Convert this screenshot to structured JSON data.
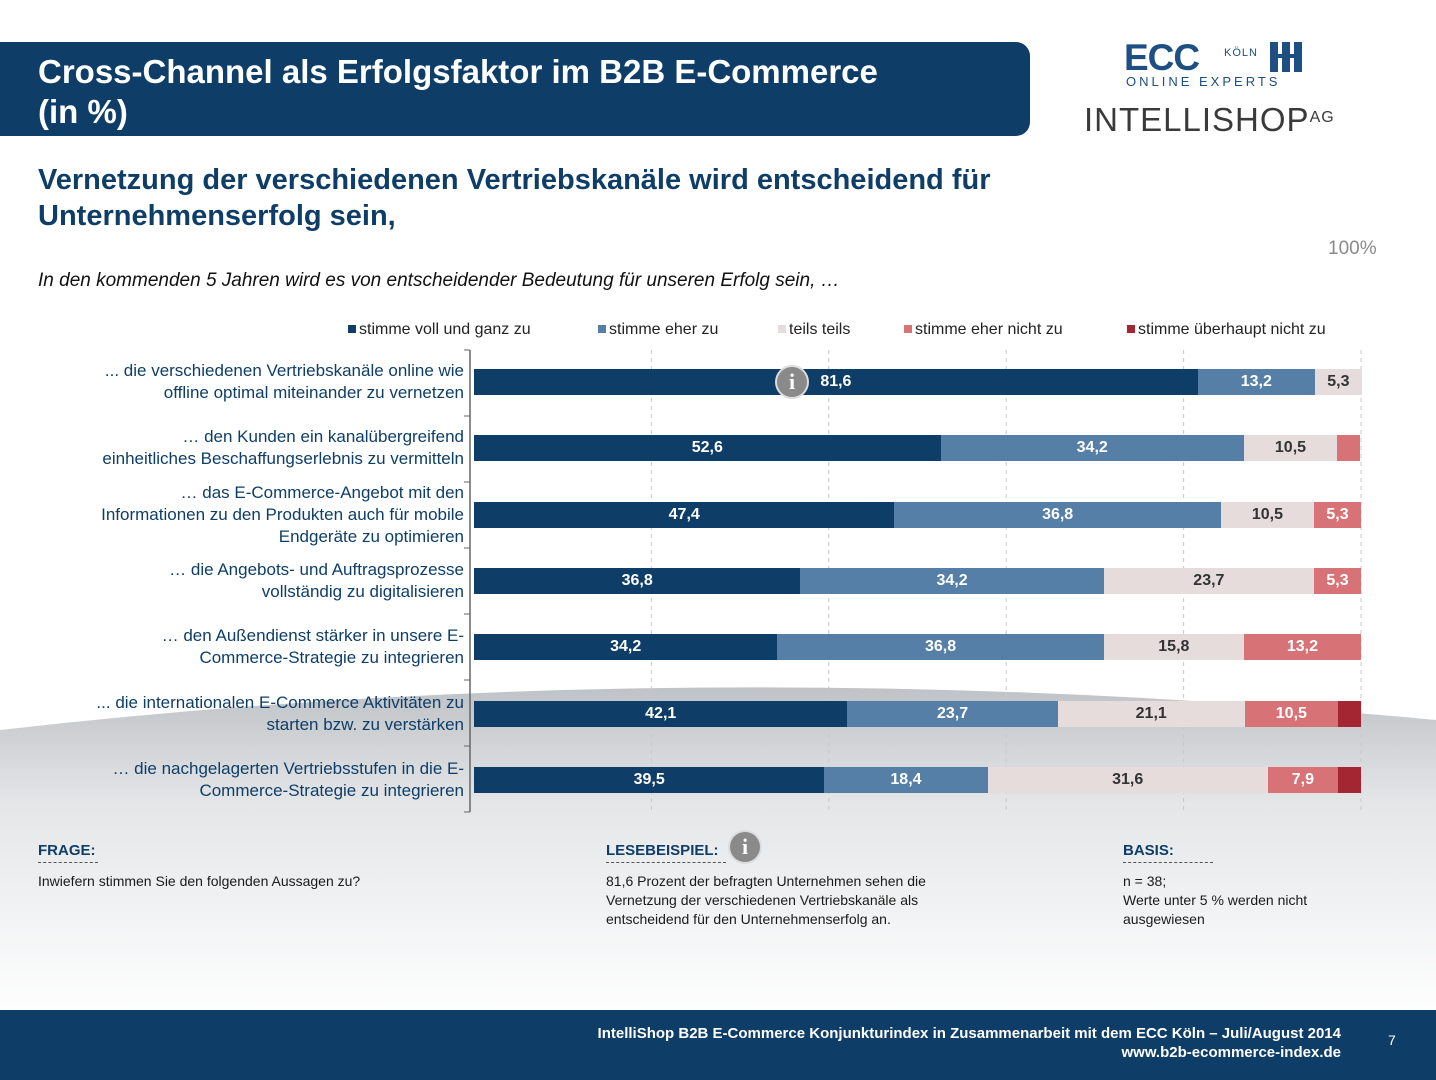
{
  "header": {
    "title_line1": "Cross-Channel als Erfolgsfaktor im B2B E-Commerce",
    "title_line2": "(in %)"
  },
  "logos": {
    "ecc_big": "ECC",
    "ecc_koln": "KÖLN",
    "ecc_sub": "ONLINE EXPERTS",
    "intelli_main": "INTELLISHOP",
    "intelli_ag": "AG"
  },
  "subtitle_line1": "Vernetzung der verschiedenen Vertriebskanäle wird entscheidend für",
  "subtitle_line2": "Unternehmenserfolg sein,",
  "hundred_label": "100%",
  "question": "In den kommenden 5 Jahren wird es von entscheidender Bedeutung für unseren Erfolg sein, …",
  "chart_data": {
    "type": "bar",
    "orientation": "horizontal",
    "stacked": true,
    "xlim": [
      0,
      100
    ],
    "grid": true,
    "legend_position": "top",
    "categories": [
      {
        "line1": "... die verschiedenen Vertriebskanäle online wie",
        "line2": "offline optimal miteinander zu vernetzen",
        "line3": ""
      },
      {
        "line1": "… den Kunden ein kanalübergreifend",
        "line2": "einheitliches Beschaffungserlebnis zu vermitteln",
        "line3": ""
      },
      {
        "line1": "… das E-Commerce-Angebot mit den",
        "line2": "Informationen zu den Produkten auch für mobile",
        "line3": "Endgeräte zu optimieren"
      },
      {
        "line1": "… die Angebots- und Auftragsprozesse",
        "line2": "vollständig zu digitalisieren",
        "line3": ""
      },
      {
        "line1": "… den Außendienst stärker in unsere E-",
        "line2": "Commerce-Strategie zu integrieren",
        "line3": ""
      },
      {
        "line1": "... die internationalen E-Commerce Aktivitäten zu",
        "line2": "starten bzw. zu verstärken",
        "line3": ""
      },
      {
        "line1": "… die nachgelagerten Vertriebsstufen in die E-",
        "line2": "Commerce-Strategie zu integrieren",
        "line3": ""
      }
    ],
    "series": [
      {
        "name": "stimme voll und ganz zu",
        "color": "#0e3e68",
        "text_color": "#ffffff",
        "values": [
          81.6,
          52.6,
          47.4,
          36.8,
          34.2,
          42.1,
          39.5
        ],
        "labels": [
          "81,6",
          "52,6",
          "47,4",
          "36,8",
          "34,2",
          "42,1",
          "39,5"
        ]
      },
      {
        "name": "stimme eher zu",
        "color": "#557fa6",
        "text_color": "#ffffff",
        "values": [
          13.2,
          34.2,
          36.8,
          34.2,
          36.8,
          23.7,
          18.4
        ],
        "labels": [
          "13,2",
          "34,2",
          "36,8",
          "34,2",
          "36,8",
          "23,7",
          "18,4"
        ]
      },
      {
        "name": "teils teils",
        "color": "#e7dcdc",
        "text_color": "#333333",
        "values": [
          5.3,
          10.5,
          10.5,
          23.7,
          15.8,
          21.1,
          31.6
        ],
        "labels": [
          "5,3",
          "10,5",
          "10,5",
          "23,7",
          "15,8",
          "21,1",
          "31,6"
        ]
      },
      {
        "name": "stimme eher nicht zu",
        "color": "#d77276",
        "text_color": "#ffffff",
        "values": [
          0,
          2.6,
          5.3,
          5.3,
          13.2,
          10.5,
          7.9
        ],
        "labels": [
          "",
          "",
          "5,3",
          "5,3",
          "13,2",
          "10,5",
          "7,9"
        ]
      },
      {
        "name": "stimme überhaupt nicht zu",
        "color": "#a32632",
        "text_color": "#ffffff",
        "values": [
          0,
          0,
          0,
          0,
          0,
          2.6,
          2.6
        ],
        "labels": [
          "",
          "",
          "",
          "",
          "",
          "",
          ""
        ]
      }
    ]
  },
  "info_icon": "info-icon",
  "footer_notes": {
    "frage_title": "FRAGE:",
    "frage_text": "Inwiefern  stimmen Sie den folgenden  Aussagen zu?",
    "lese_title": "LESEBEISPIEL:",
    "lese_line1": "81,6 Prozent  der befragten Unternehmen  sehen die",
    "lese_line2": "Vernetzung  der verschiedenen  Vertriebskanäle als",
    "lese_line3": "entscheidend  für den Unternehmenserfolg  an.",
    "basis_title": "BASIS:",
    "basis_line1": "n = 38;",
    "basis_line2": "Werte unter  5 % werden nicht",
    "basis_line3": "ausgewiesen"
  },
  "footer": {
    "line1": "IntelliShop  B2B E-Commerce Konjunkturindex in Zusammenarbeit mit dem ECC Köln –  Juli/August 2014",
    "line2": "www.b2b-ecommerce-index.de",
    "page_number": "7"
  }
}
